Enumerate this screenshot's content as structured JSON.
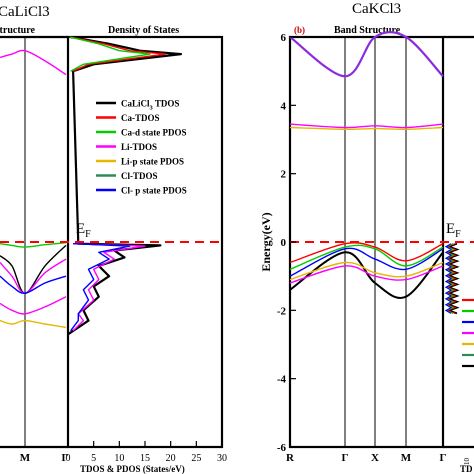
{
  "figure": {
    "left_panel_title": "CaLiCl3",
    "left_bs_title": "Structure",
    "left_dos_title": "Density of States",
    "left_ef_label": "E",
    "left_ef_sub": "F",
    "left_xtick_m": "M",
    "left_xtick_gamma": "Γ",
    "left_dos_xlabel": "TDOS & PDOS (States/eV)",
    "right_panel_title": "CaKCl3",
    "right_panel_letter": "(b)",
    "right_bs_title": "Band Structure",
    "right_ylabel": "Energy(eV)",
    "right_ef_label": "E",
    "right_ef_sub": "F",
    "right_dos_xlabel_fragment": "TD",
    "right_dos_tick_fragment": "10",
    "colors": {
      "tdos": "#000000",
      "ca_tdos": "#ff0000",
      "ca_d": "#00cc00",
      "li_tdos": "#ff00ff",
      "li_p": "#e6b800",
      "cl_tdos": "#2e8b57",
      "cl_p": "#0000ff",
      "fermi": "#ff0000",
      "conduction": "#8a2be2"
    }
  },
  "chart_data": [
    {
      "type": "line",
      "panel": "CaLiCl3 band structure (partial)",
      "xticks": [
        "M",
        "Γ"
      ],
      "ylim": [
        -6,
        6
      ],
      "series": [
        {
          "values": [
            -0.05,
            -0.1,
            -0.15,
            -0.08,
            -0.02
          ]
        },
        {
          "values": [
            -0.4,
            -0.7,
            -1.5,
            -0.7,
            -0.1
          ]
        },
        {
          "values": [
            -0.6,
            -1.0,
            -1.5,
            -0.9,
            -0.5
          ]
        },
        {
          "values": [
            -1.0,
            -1.3,
            -1.5,
            -1.2,
            -1.0
          ]
        },
        {
          "values": [
            -1.8,
            -2.0,
            -2.1,
            -1.9,
            -1.6
          ]
        },
        {
          "values": [
            -2.3,
            -2.4,
            -2.3,
            -2.4,
            -2.5
          ]
        },
        {
          "values": [
            5.4,
            5.5,
            5.6,
            5.3,
            4.9
          ]
        }
      ]
    },
    {
      "type": "line",
      "panel": "CaLiCl3 density of states",
      "title": "Density of States",
      "xlabel": "TDOS & PDOS (States/eV)",
      "xlim": [
        0,
        30
      ],
      "xticks": [
        0,
        5,
        10,
        15,
        20,
        25,
        30
      ],
      "legend": {
        "placement": "right",
        "entries": [
          {
            "label": "CaLiCl",
            "sub": "3",
            "suffix": " TDOS",
            "color": "#000000"
          },
          {
            "label": "Ca-TDOS",
            "color": "#ff0000"
          },
          {
            "label": "Ca-d state PDOS",
            "color": "#00cc00"
          },
          {
            "label": "Li-TDOS",
            "color": "#ff00ff"
          },
          {
            "label": "Li-p state PDOS",
            "color": "#e6b800"
          },
          {
            "label": "Cl-TDOS",
            "color": "#2e8b57"
          },
          {
            "label": "Cl- p state PDOS",
            "color": "#0000ff"
          }
        ]
      },
      "series": [
        {
          "color": "#000000",
          "points": [
            [
              0.5,
              6.0
            ],
            [
              8,
              5.8
            ],
            [
              14,
              5.6
            ],
            [
              22,
              5.5
            ],
            [
              5,
              5.2
            ],
            [
              1,
              5.0
            ],
            [
              2,
              -0.05
            ],
            [
              18,
              -0.1
            ],
            [
              9,
              -0.25
            ],
            [
              11,
              -0.45
            ],
            [
              6,
              -0.7
            ],
            [
              8,
              -1.0
            ],
            [
              5,
              -1.3
            ],
            [
              6,
              -1.6
            ],
            [
              3,
              -2.0
            ],
            [
              4,
              -2.3
            ],
            [
              2,
              -2.5
            ],
            [
              0,
              -2.7
            ]
          ]
        },
        {
          "color": "#ff0000",
          "points": [
            [
              0.5,
              6.0
            ],
            [
              7,
              5.8
            ],
            [
              12,
              5.6
            ],
            [
              19,
              5.5
            ],
            [
              4,
              5.2
            ],
            [
              1,
              5.0
            ]
          ]
        },
        {
          "color": "#00cc00",
          "points": [
            [
              0.3,
              6.0
            ],
            [
              6,
              5.8
            ],
            [
              10,
              5.6
            ],
            [
              16,
              5.5
            ],
            [
              3,
              5.2
            ],
            [
              0.5,
              5.0
            ]
          ]
        },
        {
          "color": "#ff00ff",
          "points": [
            [
              1,
              -0.05
            ],
            [
              15,
              -0.12
            ],
            [
              7,
              -0.3
            ],
            [
              9,
              -0.5
            ],
            [
              5,
              -0.8
            ],
            [
              6,
              -1.1
            ],
            [
              4,
              -1.4
            ],
            [
              5,
              -1.7
            ],
            [
              2,
              -2.1
            ],
            [
              3,
              -2.3
            ],
            [
              1,
              -2.6
            ]
          ]
        },
        {
          "color": "#0000ff",
          "points": [
            [
              1,
              -0.05
            ],
            [
              12,
              -0.12
            ],
            [
              6,
              -0.3
            ],
            [
              8,
              -0.5
            ],
            [
              4,
              -0.8
            ],
            [
              5,
              -1.1
            ],
            [
              3,
              -1.4
            ],
            [
              4,
              -1.7
            ],
            [
              2,
              -2.1
            ],
            [
              2,
              -2.3
            ],
            [
              0.5,
              -2.6
            ]
          ]
        }
      ]
    },
    {
      "type": "line",
      "panel": "CaKCl3 band structure",
      "title": "Band Structure",
      "ylabel": "Energy(eV)",
      "ylim": [
        -6,
        6
      ],
      "yticks": [
        -6,
        -4,
        -2,
        0,
        2,
        4,
        6
      ],
      "xticks": [
        "R",
        "Γ",
        "X",
        "M",
        "Γ"
      ],
      "series": [
        {
          "color": "#8a2be2",
          "values": [
            6.0,
            4.85,
            6.0,
            6.0,
            4.85
          ]
        },
        {
          "color": "#ff00ff",
          "values": [
            3.45,
            3.35,
            3.4,
            3.35,
            3.45
          ]
        },
        {
          "color": "#e6b800",
          "values": [
            3.35,
            3.3,
            3.32,
            3.3,
            3.35
          ]
        },
        {
          "color": "#000000",
          "values": [
            -1.4,
            -0.3,
            -1.2,
            -1.6,
            -0.3
          ]
        },
        {
          "color": "#ff0000",
          "values": [
            -0.6,
            -0.05,
            -0.15,
            -0.55,
            -0.05
          ]
        },
        {
          "color": "#00cc00",
          "values": [
            -0.8,
            -0.15,
            -0.2,
            -0.7,
            -0.15
          ]
        },
        {
          "color": "#0000ff",
          "values": [
            -1.0,
            -0.2,
            -0.5,
            -0.8,
            -0.2
          ]
        },
        {
          "color": "#e6b800",
          "values": [
            -1.1,
            -0.6,
            -0.9,
            -1.0,
            -0.6
          ]
        },
        {
          "color": "#ff00ff",
          "values": [
            -1.2,
            -0.7,
            -1.0,
            -1.1,
            -0.7
          ]
        }
      ]
    }
  ]
}
